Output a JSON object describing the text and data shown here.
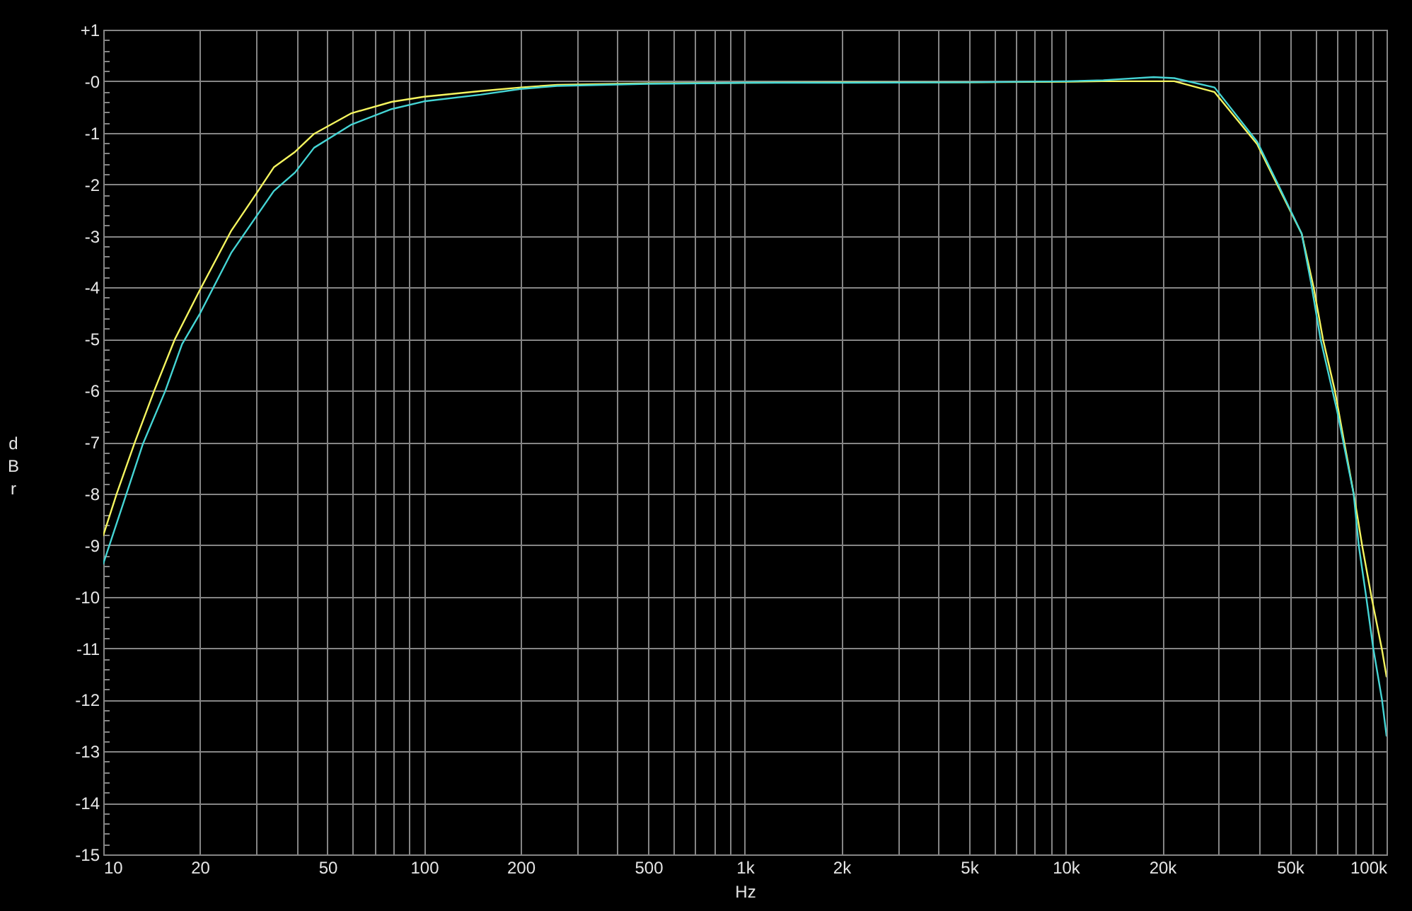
{
  "chart_data": {
    "type": "line",
    "xlabel": "Hz",
    "ylabel": "dBr",
    "log": "x",
    "grid": true,
    "xlim": [
      10,
      100000
    ],
    "xticks": [
      10,
      20,
      {
        "value": 30,
        "label": null
      },
      {
        "value": 40,
        "label": null
      },
      50,
      {
        "value": 60,
        "label": null
      },
      {
        "value": 70,
        "label": null
      },
      {
        "value": 80,
        "label": null
      },
      {
        "value": 90,
        "label": null
      },
      100,
      200,
      {
        "value": 300,
        "label": null
      },
      {
        "value": 400,
        "label": null
      },
      500,
      {
        "value": 600,
        "label": null
      },
      {
        "value": 700,
        "label": null
      },
      {
        "value": 800,
        "label": null
      },
      {
        "value": 900,
        "label": null
      },
      {
        "value": 1000,
        "label": "1k"
      },
      {
        "value": 2000,
        "label": "2k"
      },
      {
        "value": 3000,
        "label": null
      },
      {
        "value": 4000,
        "label": null
      },
      {
        "value": 5000,
        "label": "5k"
      },
      {
        "value": 6000,
        "label": null
      },
      {
        "value": 7000,
        "label": null
      },
      {
        "value": 8000,
        "label": null
      },
      {
        "value": 9000,
        "label": null
      },
      {
        "value": 10000,
        "label": "10k"
      },
      {
        "value": 20000,
        "label": "20k"
      },
      {
        "value": 30000,
        "label": null
      },
      {
        "value": 40000,
        "label": null
      },
      {
        "value": 50000,
        "label": "50k"
      },
      {
        "value": 60000,
        "label": null
      },
      {
        "value": 70000,
        "label": null
      },
      {
        "value": 80000,
        "label": null
      },
      {
        "value": 90000,
        "label": null
      },
      {
        "value": 100000,
        "label": "100k"
      }
    ],
    "ylim": [
      -15,
      1
    ],
    "yticks": [
      {
        "value": 1,
        "label": "+1"
      },
      {
        "value": 0.8,
        "label": null
      },
      {
        "value": 0.6,
        "label": null
      },
      {
        "value": 0.4,
        "label": null
      },
      {
        "value": 0.2,
        "label": null
      },
      {
        "value": 0,
        "label": "-0"
      },
      {
        "value": -0.2,
        "label": null
      },
      {
        "value": -0.4,
        "label": null
      },
      {
        "value": -0.6,
        "label": null
      },
      {
        "value": -0.8,
        "label": null
      },
      -1,
      {
        "value": -1.2,
        "label": null
      },
      {
        "value": -1.4,
        "label": null
      },
      {
        "value": -1.6,
        "label": null
      },
      {
        "value": -1.8,
        "label": null
      },
      -2,
      {
        "value": -2.2,
        "label": null
      },
      {
        "value": -2.4,
        "label": null
      },
      {
        "value": -2.6,
        "label": null
      },
      {
        "value": -2.8,
        "label": null
      },
      -3,
      {
        "value": -3.2,
        "label": null
      },
      {
        "value": -3.4,
        "label": null
      },
      {
        "value": -3.6,
        "label": null
      },
      {
        "value": -3.8,
        "label": null
      },
      -4,
      {
        "value": -4.2,
        "label": null
      },
      {
        "value": -4.4,
        "label": null
      },
      {
        "value": -4.6,
        "label": null
      },
      {
        "value": -4.8,
        "label": null
      },
      -5,
      {
        "value": -5.2,
        "label": null
      },
      {
        "value": -5.4,
        "label": null
      },
      {
        "value": -5.6,
        "label": null
      },
      {
        "value": -5.8,
        "label": null
      },
      -6,
      {
        "value": -6.2,
        "label": null
      },
      {
        "value": -6.4,
        "label": null
      },
      {
        "value": -6.6,
        "label": null
      },
      {
        "value": -6.8,
        "label": null
      },
      -7,
      {
        "value": -7.2,
        "label": null
      },
      {
        "value": -7.4,
        "label": null
      },
      {
        "value": -7.6,
        "label": null
      },
      {
        "value": -7.8,
        "label": null
      },
      -8,
      {
        "value": -8.2,
        "label": null
      },
      {
        "value": -8.4,
        "label": null
      },
      {
        "value": -8.6,
        "label": null
      },
      {
        "value": -8.8,
        "label": null
      },
      -9,
      {
        "value": -9.2,
        "label": null
      },
      {
        "value": -9.4,
        "label": null
      },
      {
        "value": -9.6,
        "label": null
      },
      {
        "value": -9.8,
        "label": null
      },
      -10,
      {
        "value": -10.2,
        "label": null
      },
      {
        "value": -10.4,
        "label": null
      },
      {
        "value": -10.6,
        "label": null
      },
      {
        "value": -10.8,
        "label": null
      },
      -11,
      {
        "value": -11.2,
        "label": null
      },
      {
        "value": -11.4,
        "label": null
      },
      {
        "value": -11.6,
        "label": null
      },
      {
        "value": -11.8,
        "label": null
      },
      -12,
      {
        "value": -12.2,
        "label": null
      },
      {
        "value": -12.4,
        "label": null
      },
      {
        "value": -12.6,
        "label": null
      },
      {
        "value": -12.8,
        "label": null
      },
      -13,
      {
        "value": -13.2,
        "label": null
      },
      {
        "value": -13.4,
        "label": null
      },
      {
        "value": -13.6,
        "label": null
      },
      {
        "value": -13.8,
        "label": null
      },
      -14,
      {
        "value": -14.2,
        "label": null
      },
      {
        "value": -14.4,
        "label": null
      },
      {
        "value": -14.6,
        "label": null
      },
      {
        "value": -14.8,
        "label": null
      },
      -15
    ],
    "series": [
      {
        "color": "#f5f55f",
        "x": [
          10,
          11,
          12.5,
          14.4,
          16.7,
          20,
          25,
          29.7,
          34,
          39.6,
          45.4,
          59.4,
          79.2,
          100,
          150,
          200,
          260,
          500,
          1000,
          2000,
          5000,
          10000,
          13000,
          21800,
          29100,
          39500,
          45900,
          54400,
          59300,
          63400,
          69000,
          73800,
          79000,
          84000,
          89800,
          96800,
          100000
        ],
        "values": [
          -8.81,
          -8.01,
          -7.03,
          -6.01,
          -5.01,
          -4.05,
          -2.91,
          -2.22,
          -1.67,
          -1.37,
          -1.02,
          -0.62,
          -0.4,
          -0.3,
          -0.19,
          -0.12,
          -0.07,
          -0.04,
          -0.03,
          -0.02,
          -0.02,
          -0.01,
          0,
          0,
          -0.21,
          -1.22,
          -2.04,
          -2.96,
          -4.01,
          -5.01,
          -6.0,
          -7.0,
          -8.0,
          -9.02,
          -10.01,
          -11.03,
          -11.55
        ]
      },
      {
        "color": "#45d5d5",
        "x": [
          10,
          11.8,
          13.3,
          15.6,
          17.6,
          20,
          25.1,
          34,
          39.6,
          45.4,
          59.4,
          79.2,
          100,
          150,
          200,
          260,
          500,
          1000,
          2000,
          5000,
          10000,
          13100,
          18800,
          21800,
          29100,
          39500,
          45900,
          54400,
          58200,
          62300,
          70100,
          79000,
          81900,
          86400,
          90900,
          96800,
          100000
        ],
        "values": [
          -9.36,
          -8.01,
          -7.03,
          -6.01,
          -5.1,
          -4.51,
          -3.32,
          -2.13,
          -1.77,
          -1.29,
          -0.84,
          -0.54,
          -0.39,
          -0.26,
          -0.15,
          -0.09,
          -0.05,
          -0.03,
          -0.03,
          -0.02,
          0,
          0.02,
          0.08,
          0.06,
          -0.12,
          -1.17,
          -2.0,
          -2.96,
          -3.92,
          -5.01,
          -6.39,
          -8.01,
          -9.0,
          -10.0,
          -11.0,
          -12.0,
          -12.7
        ]
      }
    ]
  }
}
